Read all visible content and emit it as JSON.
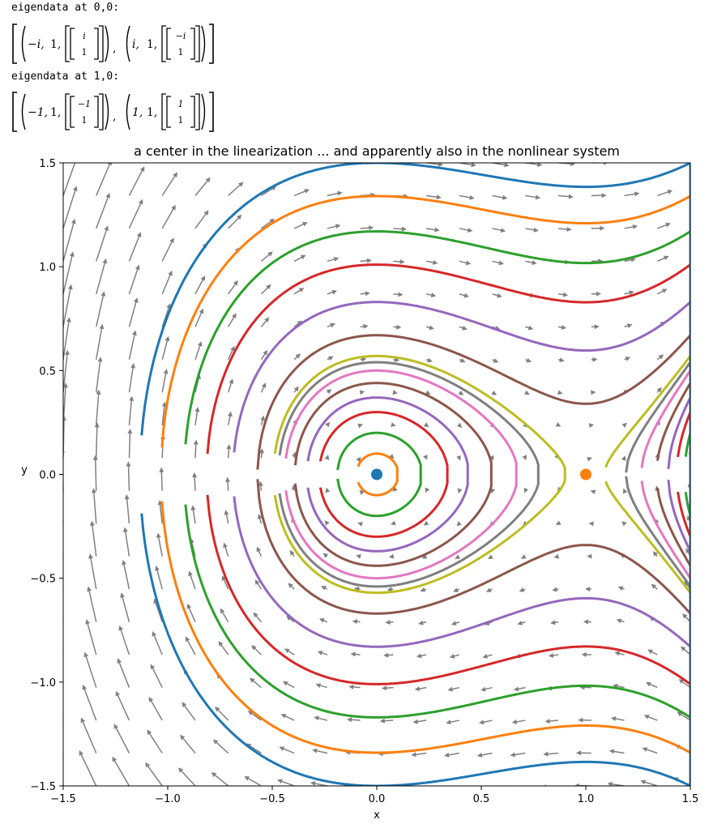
{
  "output": {
    "line1": "eigendata at 0,0:",
    "line2": "eigendata at 1,0:",
    "eig0": [
      {
        "value": "−i",
        "mult": "1",
        "vec_top": "i",
        "vec_bot": "1"
      },
      {
        "value": "i",
        "mult": "1",
        "vec_top": "−i",
        "vec_bot": "1"
      }
    ],
    "eig1": [
      {
        "value": "−1",
        "mult": "1",
        "vec_top": "−1",
        "vec_bot": "1"
      },
      {
        "value": "1",
        "mult": "1",
        "vec_top": "1",
        "vec_bot": "1"
      }
    ]
  },
  "chart_data": {
    "type": "phase_portrait",
    "title": "a center in the linearization ... and apparently also in the nonlinear system",
    "xlabel": "x",
    "ylabel": "y",
    "xlim": [
      -1.5,
      1.5
    ],
    "ylim": [
      -1.5,
      1.5
    ],
    "xticks": [
      "−1.5",
      "−1.0",
      "−0.5",
      "0.0",
      "0.5",
      "1.0",
      "1.5"
    ],
    "xtick_values": [
      -1.5,
      -1.0,
      -0.5,
      0.0,
      0.5,
      1.0,
      1.5
    ],
    "yticks": [
      "−1.5",
      "−1.0",
      "−0.5",
      "0.0",
      "0.5",
      "1.0",
      "1.5"
    ],
    "ytick_values": [
      -1.5,
      -1.0,
      -0.5,
      0.0,
      0.5,
      1.0,
      1.5
    ],
    "field": "dx/dt = y, dy/dt = -x + x^2",
    "quiver_color": "#808080",
    "equilibria": [
      {
        "x": 0.0,
        "y": 0.0,
        "color": "#1f77b4"
      },
      {
        "x": 1.0,
        "y": 0.0,
        "color": "#ff7f0e"
      }
    ],
    "level_curves": [
      {
        "y_at_x0": 0.1,
        "color": "#ff7f0e"
      },
      {
        "y_at_x0": 0.2,
        "color": "#2ca02c"
      },
      {
        "y_at_x0": 0.3,
        "color": "#d62728"
      },
      {
        "y_at_x0": 0.37,
        "color": "#9467bd"
      },
      {
        "y_at_x0": 0.44,
        "color": "#8c564b"
      },
      {
        "y_at_x0": 0.5,
        "color": "#e377c2"
      },
      {
        "y_at_x0": 0.54,
        "color": "#7f7f7f"
      },
      {
        "y_at_x0": 0.57,
        "color": "#bcbd22"
      },
      {
        "y_at_x0": 0.67,
        "color": "#8c564b"
      },
      {
        "y_at_x0": 0.83,
        "color": "#9467bd"
      },
      {
        "y_at_x0": 1.01,
        "color": "#d62728"
      },
      {
        "y_at_x0": 1.17,
        "color": "#2ca02c"
      },
      {
        "y_at_x0": 1.34,
        "color": "#ff7f0e"
      },
      {
        "y_at_x0": 1.5,
        "color": "#1f77b4"
      }
    ]
  }
}
